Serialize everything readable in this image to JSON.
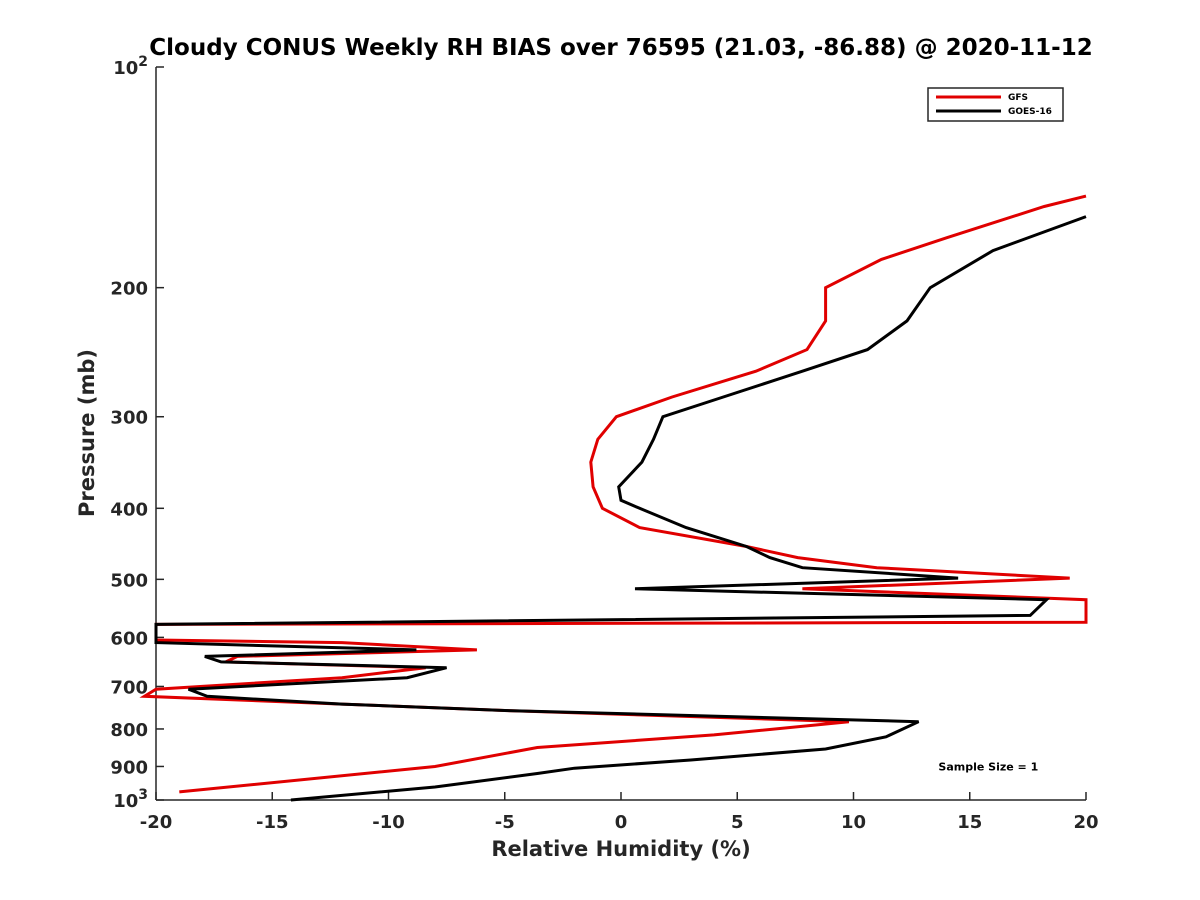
{
  "chart_data": {
    "type": "line",
    "title": "Cloudy CONUS Weekly RH BIAS over 76595 (21.03, -86.88) @ 2020-11-12",
    "xlabel": "Relative Humidity (%)",
    "ylabel": "Pressure (mb)",
    "xlim": [
      -20,
      20
    ],
    "ylim": [
      100,
      1000
    ],
    "yscale": "log",
    "y_reversed": true,
    "grid": false,
    "legend_position": "top-right",
    "x_ticks": [
      -20,
      -15,
      -10,
      -5,
      0,
      5,
      10,
      15,
      20
    ],
    "x_tick_labels": [
      "-20",
      "-15",
      "-10",
      "-5",
      "0",
      "5",
      "10",
      "15",
      "20"
    ],
    "y_ticks": [
      {
        "value": 100,
        "label_base": "10",
        "label_exp": "2"
      },
      {
        "value": 200,
        "label": "200"
      },
      {
        "value": 300,
        "label": "300"
      },
      {
        "value": 400,
        "label": "400"
      },
      {
        "value": 500,
        "label": "500"
      },
      {
        "value": 600,
        "label": "600"
      },
      {
        "value": 700,
        "label": "700"
      },
      {
        "value": 800,
        "label": "800"
      },
      {
        "value": 900,
        "label": "900"
      },
      {
        "value": 1000,
        "label_base": "10",
        "label_exp": "3"
      }
    ],
    "series": [
      {
        "name": "GFS",
        "color": "#e00000",
        "points": [
          [
            20.0,
            150
          ],
          [
            18.2,
            155
          ],
          [
            14.0,
            171
          ],
          [
            11.2,
            183
          ],
          [
            8.8,
            200
          ],
          [
            8.8,
            222
          ],
          [
            8.0,
            243
          ],
          [
            5.8,
            260
          ],
          [
            2.2,
            282
          ],
          [
            -0.2,
            300
          ],
          [
            -1.0,
            322
          ],
          [
            -1.3,
            346
          ],
          [
            -1.2,
            374
          ],
          [
            -0.8,
            400
          ],
          [
            0.8,
            425
          ],
          [
            5.4,
            451
          ],
          [
            7.6,
            467
          ],
          [
            11.0,
            482
          ],
          [
            19.3,
            498
          ],
          [
            7.8,
            515
          ],
          [
            20.0,
            533
          ],
          [
            20.0,
            572
          ],
          [
            -20.0,
            576
          ],
          [
            -20.0,
            605
          ],
          [
            -12.0,
            610
          ],
          [
            -6.2,
            624
          ],
          [
            -16.5,
            637
          ],
          [
            -17.0,
            648
          ],
          [
            -8.4,
            660
          ],
          [
            -12.0,
            681
          ],
          [
            -20.0,
            706
          ],
          [
            -20.5,
            722
          ],
          [
            -12.0,
            740
          ],
          [
            -5.0,
            755
          ],
          [
            9.8,
            782
          ],
          [
            4.0,
            815
          ],
          [
            -3.6,
            848
          ],
          [
            -8.0,
            900
          ],
          [
            -19.0,
            975
          ]
        ]
      },
      {
        "name": "GOES-16",
        "color": "#000000",
        "points": [
          [
            20.0,
            160
          ],
          [
            16.0,
            178
          ],
          [
            13.3,
            200
          ],
          [
            12.3,
            222
          ],
          [
            10.6,
            243
          ],
          [
            7.8,
            260
          ],
          [
            4.4,
            282
          ],
          [
            1.8,
            300
          ],
          [
            1.4,
            322
          ],
          [
            0.9,
            346
          ],
          [
            -0.1,
            374
          ],
          [
            0.0,
            390
          ],
          [
            0.8,
            400
          ],
          [
            2.8,
            425
          ],
          [
            5.4,
            451
          ],
          [
            6.4,
            467
          ],
          [
            7.8,
            482
          ],
          [
            14.5,
            498
          ],
          [
            0.6,
            515
          ],
          [
            18.3,
            533
          ],
          [
            17.6,
            560
          ],
          [
            -20.0,
            576
          ],
          [
            -20.0,
            610
          ],
          [
            -8.8,
            624
          ],
          [
            -17.9,
            637
          ],
          [
            -17.2,
            648
          ],
          [
            -7.5,
            660
          ],
          [
            -9.2,
            681
          ],
          [
            -18.6,
            706
          ],
          [
            -17.8,
            722
          ],
          [
            -12.0,
            740
          ],
          [
            -5.0,
            755
          ],
          [
            12.8,
            782
          ],
          [
            11.4,
            820
          ],
          [
            8.8,
            852
          ],
          [
            3.0,
            882
          ],
          [
            -2.0,
            905
          ],
          [
            -3.6,
            920
          ],
          [
            -8.0,
            960
          ],
          [
            -14.2,
            1000
          ]
        ]
      }
    ],
    "annotations": [
      {
        "text": "Sample Size = 1",
        "x": 15.8,
        "y": 900
      }
    ]
  }
}
